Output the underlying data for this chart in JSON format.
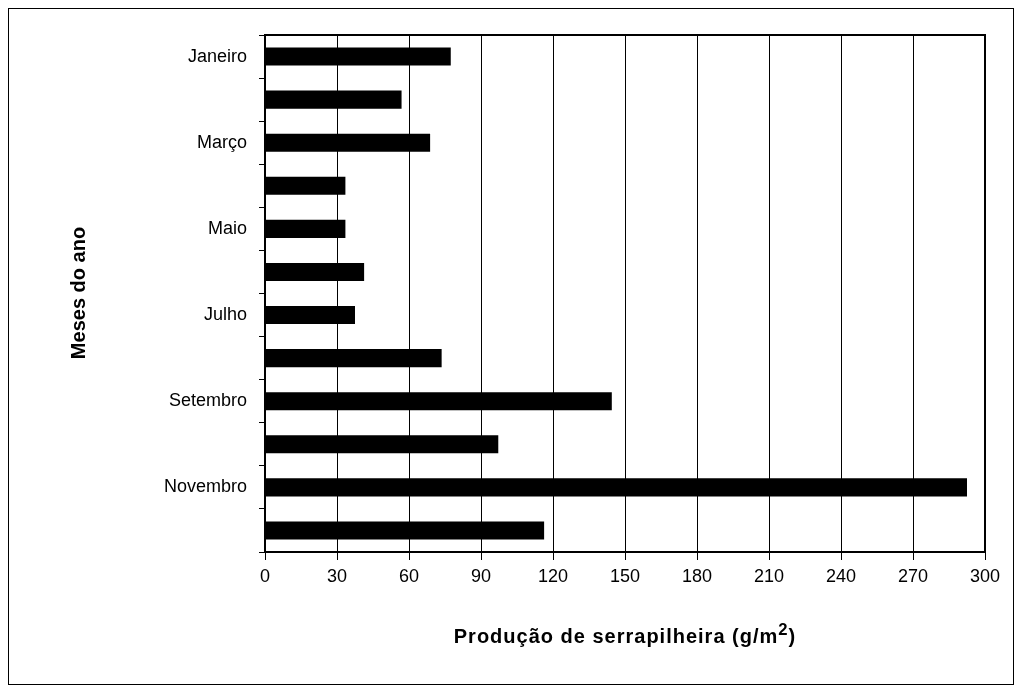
{
  "chart_data": {
    "type": "bar",
    "orientation": "horizontal",
    "xlabel": "Produção de serrapilheira (g/m$^{2}$)",
    "ylabel": "Meses do ano",
    "categories": [
      "Janeiro",
      null,
      "Março",
      null,
      "Maio",
      null,
      "Julho",
      null,
      "Setembro",
      null,
      "Novembro",
      null
    ],
    "values": [
      77.4,
      56.9,
      68.8,
      33.5,
      33.5,
      41.3,
      37.5,
      73.6,
      144.5,
      97.2,
      292.5,
      116.3
    ],
    "color": "#000000",
    "xlim": [
      0,
      300
    ],
    "xticks": [
      0,
      30,
      60,
      90,
      120,
      150,
      180,
      210,
      240,
      270,
      300
    ],
    "grid": "x",
    "legend": false
  }
}
